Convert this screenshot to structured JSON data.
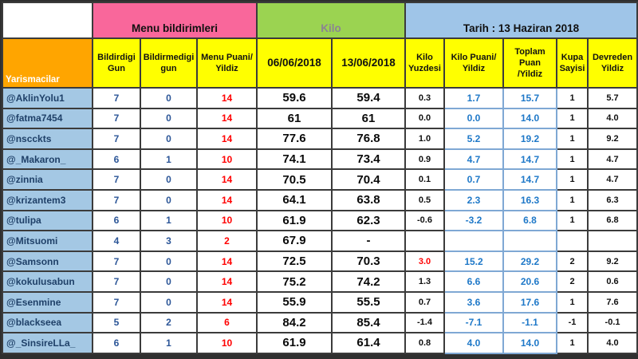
{
  "colors": {
    "menu_header_bg": "#f9679b",
    "kilo_header_bg": "#9bd351",
    "tarih_header_bg": "#9fc5e8",
    "column_header_bg": "#ffff00",
    "yarismacilar_bg": "#ffa500",
    "username_cell_bg": "#a4c8e4",
    "red_value": "#ff0000",
    "blue_value": "#1e78c8",
    "dark_border": "#3b3b3b",
    "blue_border": "#7fa8d4"
  },
  "group_headers": {
    "menu": "Menu bildirimleri",
    "kilo": "Kilo",
    "tarih": "Tarih : 13 Haziran 2018"
  },
  "column_headers": {
    "yarismacilar": "Yarismacilar",
    "cols": [
      "Bildirdigi\nGun",
      "Bildirmedigi\ngun",
      "Menu Puani/\nYildiz",
      "06/06/2018",
      "13/06/2018",
      "Kilo\nYuzdesi",
      "Kilo Puani/\nYildiz",
      "Toplam\nPuan\n/Yildiz",
      "Kupa\nSayisi",
      "Devreden\nYildiz"
    ]
  },
  "rows": [
    {
      "name": "@AklinYolu1",
      "bildirdigi": "7",
      "bildirmedigi": "0",
      "menu_puani": "14",
      "kilo_0606": "59.6",
      "kilo_1306": "59.4",
      "kilo_yuzdesi": "0.3",
      "kilo_puani": "1.7",
      "toplam_puan": "15.7",
      "kupa": "1",
      "devreden": "5.7",
      "yuzde_red": false
    },
    {
      "name": "@fatma7454",
      "bildirdigi": "7",
      "bildirmedigi": "0",
      "menu_puani": "14",
      "kilo_0606": "61",
      "kilo_1306": "61",
      "kilo_yuzdesi": "0.0",
      "kilo_puani": "0.0",
      "toplam_puan": "14.0",
      "kupa": "1",
      "devreden": "4.0",
      "yuzde_red": false
    },
    {
      "name": "@nscckts",
      "bildirdigi": "7",
      "bildirmedigi": "0",
      "menu_puani": "14",
      "kilo_0606": "77.6",
      "kilo_1306": "76.8",
      "kilo_yuzdesi": "1.0",
      "kilo_puani": "5.2",
      "toplam_puan": "19.2",
      "kupa": "1",
      "devreden": "9.2",
      "yuzde_red": false
    },
    {
      "name": "@_Makaron_",
      "bildirdigi": "6",
      "bildirmedigi": "1",
      "menu_puani": "10",
      "kilo_0606": "74.1",
      "kilo_1306": "73.4",
      "kilo_yuzdesi": "0.9",
      "kilo_puani": "4.7",
      "toplam_puan": "14.7",
      "kupa": "1",
      "devreden": "4.7",
      "yuzde_red": false
    },
    {
      "name": "@zinnia",
      "bildirdigi": "7",
      "bildirmedigi": "0",
      "menu_puani": "14",
      "kilo_0606": "70.5",
      "kilo_1306": "70.4",
      "kilo_yuzdesi": "0.1",
      "kilo_puani": "0.7",
      "toplam_puan": "14.7",
      "kupa": "1",
      "devreden": "4.7",
      "yuzde_red": false
    },
    {
      "name": "@krizantem3",
      "bildirdigi": "7",
      "bildirmedigi": "0",
      "menu_puani": "14",
      "kilo_0606": "64.1",
      "kilo_1306": "63.8",
      "kilo_yuzdesi": "0.5",
      "kilo_puani": "2.3",
      "toplam_puan": "16.3",
      "kupa": "1",
      "devreden": "6.3",
      "yuzde_red": false
    },
    {
      "name": "@tulipa",
      "bildirdigi": "6",
      "bildirmedigi": "1",
      "menu_puani": "10",
      "kilo_0606": "61.9",
      "kilo_1306": "62.3",
      "kilo_yuzdesi": "-0.6",
      "kilo_puani": "-3.2",
      "toplam_puan": "6.8",
      "kupa": "1",
      "devreden": "6.8",
      "yuzde_red": false
    },
    {
      "name": "@Mitsuomi",
      "bildirdigi": "4",
      "bildirmedigi": "3",
      "menu_puani": "2",
      "kilo_0606": "67.9",
      "kilo_1306": "-",
      "kilo_yuzdesi": "",
      "kilo_puani": "",
      "toplam_puan": "",
      "kupa": "",
      "devreden": "",
      "yuzde_red": false
    },
    {
      "name": "@Samsonn",
      "bildirdigi": "7",
      "bildirmedigi": "0",
      "menu_puani": "14",
      "kilo_0606": "72.5",
      "kilo_1306": "70.3",
      "kilo_yuzdesi": "3.0",
      "kilo_puani": "15.2",
      "toplam_puan": "29.2",
      "kupa": "2",
      "devreden": "9.2",
      "yuzde_red": true
    },
    {
      "name": "@kokulusabun",
      "bildirdigi": "7",
      "bildirmedigi": "0",
      "menu_puani": "14",
      "kilo_0606": "75.2",
      "kilo_1306": "74.2",
      "kilo_yuzdesi": "1.3",
      "kilo_puani": "6.6",
      "toplam_puan": "20.6",
      "kupa": "2",
      "devreden": "0.6",
      "yuzde_red": false
    },
    {
      "name": "@Esenmine",
      "bildirdigi": "7",
      "bildirmedigi": "0",
      "menu_puani": "14",
      "kilo_0606": "55.9",
      "kilo_1306": "55.5",
      "kilo_yuzdesi": "0.7",
      "kilo_puani": "3.6",
      "toplam_puan": "17.6",
      "kupa": "1",
      "devreden": "7.6",
      "yuzde_red": false
    },
    {
      "name": "@blackseea",
      "bildirdigi": "5",
      "bildirmedigi": "2",
      "menu_puani": "6",
      "kilo_0606": "84.2",
      "kilo_1306": "85.4",
      "kilo_yuzdesi": "-1.4",
      "kilo_puani": "-7.1",
      "toplam_puan": "-1.1",
      "kupa": "-1",
      "devreden": "-0.1",
      "yuzde_red": false
    },
    {
      "name": "@_SinsireLLa_",
      "bildirdigi": "6",
      "bildirmedigi": "1",
      "menu_puani": "10",
      "kilo_0606": "61.9",
      "kilo_1306": "61.4",
      "kilo_yuzdesi": "0.8",
      "kilo_puani": "4.0",
      "toplam_puan": "14.0",
      "kupa": "1",
      "devreden": "4.0",
      "yuzde_red": false
    }
  ]
}
